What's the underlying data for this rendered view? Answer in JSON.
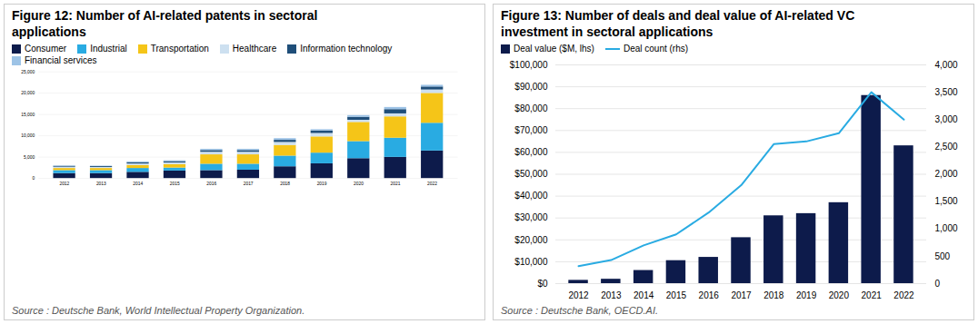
{
  "chart_data": [
    {
      "type": "bar",
      "title": "Figure 12: Number of AI-related patents in sectoral\napplications",
      "caption": "Source : Deutsche Bank, World Intellectual Property Organization.",
      "categories": [
        "2012",
        "2013",
        "2014",
        "2015",
        "2016",
        "2017",
        "2018",
        "2019",
        "2020",
        "2021",
        "2022"
      ],
      "series": [
        {
          "name": "Consumer",
          "color": "#0d1b4b",
          "values": [
            1200,
            1200,
            1500,
            1800,
            1900,
            2000,
            2800,
            3500,
            4700,
            5000,
            6500
          ]
        },
        {
          "name": "Industrial",
          "color": "#29abe2",
          "values": [
            700,
            700,
            900,
            700,
            1500,
            1400,
            2500,
            2500,
            4000,
            4500,
            6500
          ]
        },
        {
          "name": "Transportation",
          "color": "#f5c518",
          "values": [
            500,
            500,
            700,
            800,
            2200,
            2200,
            2500,
            3800,
            4500,
            5000,
            7000
          ]
        },
        {
          "name": "Healthcare",
          "color": "#cde0f0",
          "values": [
            300,
            250,
            350,
            400,
            600,
            600,
            700,
            800,
            500,
            700,
            800
          ]
        },
        {
          "name": "Information technology",
          "color": "#1f4e79",
          "values": [
            200,
            200,
            300,
            300,
            400,
            400,
            500,
            600,
            700,
            1000,
            700
          ]
        },
        {
          "name": "Financial services",
          "color": "#9dc3e6",
          "values": [
            100,
            100,
            200,
            200,
            300,
            300,
            400,
            300,
            400,
            500,
            400
          ]
        }
      ],
      "stacked": true,
      "ylim": [
        0,
        25000
      ],
      "yticks": [
        0,
        {
          "value": 5000,
          "label": "5,000"
        },
        {
          "value": 10000,
          "label": "10,000"
        },
        {
          "value": 15000,
          "label": "15,000"
        },
        {
          "value": 20000,
          "label": "20,000"
        },
        {
          "value": 25000,
          "label": "25,000"
        }
      ],
      "grid": true,
      "legend": "top-left"
    },
    {
      "type": "bar",
      "title": "Figure 13: Number of deals and deal value of AI-related VC\ninvestment in sectoral applications",
      "caption": "Source : Deutsche Bank, OECD.AI.",
      "categories": [
        "2012",
        "2013",
        "2014",
        "2015",
        "2016",
        "2017",
        "2018",
        "2019",
        "2020",
        "2021",
        "2022"
      ],
      "series": [
        {
          "name": "Deal value ($M, lhs)",
          "type": "bar",
          "color": "#0d1b4b",
          "values": [
            1500,
            2000,
            6000,
            10500,
            12000,
            21000,
            31000,
            32000,
            37000,
            86000,
            63000
          ]
        },
        {
          "name": "Deal count (rhs)",
          "type": "line",
          "color": "#29abe2",
          "axis": "y2",
          "values": [
            320,
            430,
            700,
            900,
            1300,
            1800,
            2550,
            2600,
            2750,
            3500,
            3000
          ]
        }
      ],
      "ylim": [
        0,
        100000
      ],
      "yticks": [
        {
          "value": 0,
          "label": "$0"
        },
        {
          "value": 10000,
          "label": "$10,000"
        },
        {
          "value": 20000,
          "label": "$20,000"
        },
        {
          "value": 30000,
          "label": "$30,000"
        },
        {
          "value": 40000,
          "label": "$40,000"
        },
        {
          "value": 50000,
          "label": "$50,000"
        },
        {
          "value": 60000,
          "label": "$60,000"
        },
        {
          "value": 70000,
          "label": "$70,000"
        },
        {
          "value": 80000,
          "label": "$80,000"
        },
        {
          "value": 90000,
          "label": "$90,000"
        },
        {
          "value": 100000,
          "label": "$100,000"
        }
      ],
      "y2lim": [
        0,
        4000
      ],
      "y2ticks": [
        0,
        500,
        {
          "value": 1000,
          "label": "1,000"
        },
        {
          "value": 1500,
          "label": "1,500"
        },
        {
          "value": 2000,
          "label": "2,000"
        },
        {
          "value": 2500,
          "label": "2,500"
        },
        {
          "value": 3000,
          "label": "3,000"
        },
        {
          "value": 3500,
          "label": "3,500"
        },
        {
          "value": 4000,
          "label": "4,000"
        }
      ],
      "grid": true,
      "legend": "top-left"
    }
  ]
}
